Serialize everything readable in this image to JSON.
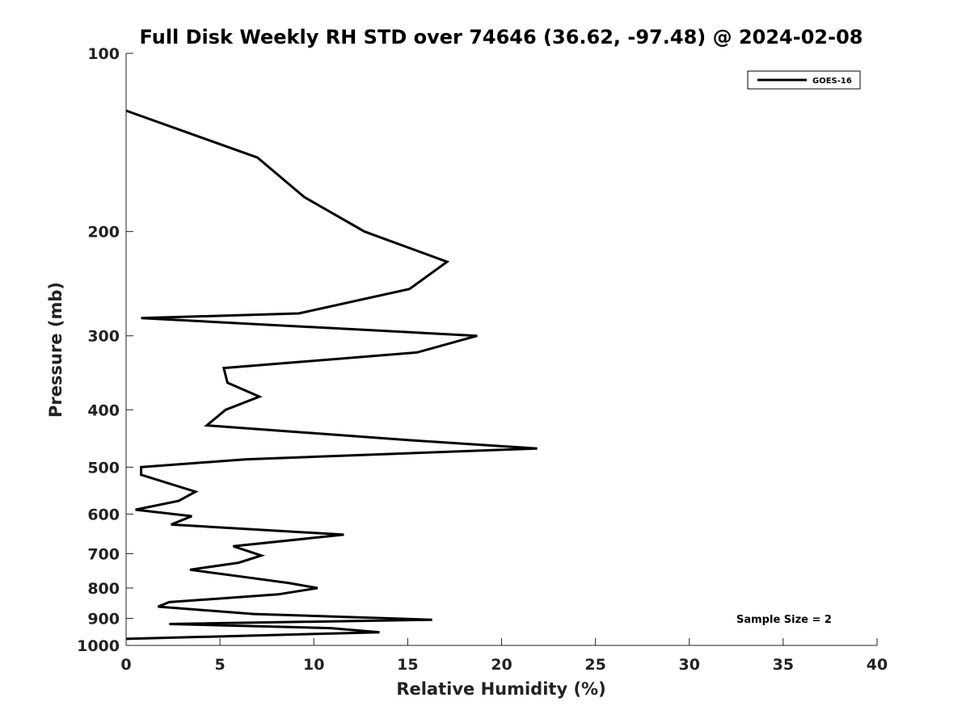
{
  "chart_data": {
    "type": "line",
    "title": "Full Disk Weekly RH STD over 74646 (36.62, -97.48) @ 2024-02-08",
    "xlabel": "Relative Humidity (%)",
    "ylabel": "Pressure (mb)",
    "xlim": [
      0,
      40
    ],
    "ylim": [
      100,
      1000
    ],
    "yscale": "log",
    "reverse_y": true,
    "x_ticks": [
      0,
      5,
      10,
      15,
      20,
      25,
      30,
      35,
      40
    ],
    "y_ticks": [
      100,
      200,
      300,
      400,
      500,
      600,
      700,
      800,
      900,
      1000
    ],
    "legend": {
      "position": "top-right",
      "entries": [
        "GOES-16"
      ]
    },
    "annotation": "Sample Size = 2",
    "series": [
      {
        "name": "GOES-16",
        "color": "#000000",
        "points": [
          [
            0.0,
            125
          ],
          [
            7.0,
            150
          ],
          [
            9.5,
            175
          ],
          [
            12.7,
            200
          ],
          [
            17.1,
            225
          ],
          [
            15.1,
            250
          ],
          [
            9.2,
            275
          ],
          [
            0.8,
            280
          ],
          [
            18.7,
            300
          ],
          [
            15.5,
            320
          ],
          [
            5.2,
            340
          ],
          [
            5.4,
            360
          ],
          [
            7.1,
            380
          ],
          [
            5.3,
            400
          ],
          [
            4.3,
            425
          ],
          [
            15.0,
            450
          ],
          [
            21.9,
            465
          ],
          [
            6.4,
            485
          ],
          [
            0.8,
            500
          ],
          [
            0.8,
            515
          ],
          [
            3.7,
            550
          ],
          [
            2.8,
            570
          ],
          [
            0.5,
            590
          ],
          [
            3.5,
            605
          ],
          [
            2.4,
            625
          ],
          [
            11.6,
            650
          ],
          [
            5.7,
            680
          ],
          [
            7.2,
            705
          ],
          [
            6.0,
            725
          ],
          [
            3.4,
            745
          ],
          [
            6.1,
            765
          ],
          [
            8.7,
            785
          ],
          [
            10.2,
            800
          ],
          [
            8.1,
            820
          ],
          [
            2.3,
            845
          ],
          [
            1.7,
            860
          ],
          [
            6.8,
            885
          ],
          [
            16.3,
            905
          ],
          [
            2.3,
            920
          ],
          [
            10.9,
            935
          ],
          [
            13.5,
            950
          ],
          [
            0.0,
            975
          ]
        ]
      }
    ]
  }
}
